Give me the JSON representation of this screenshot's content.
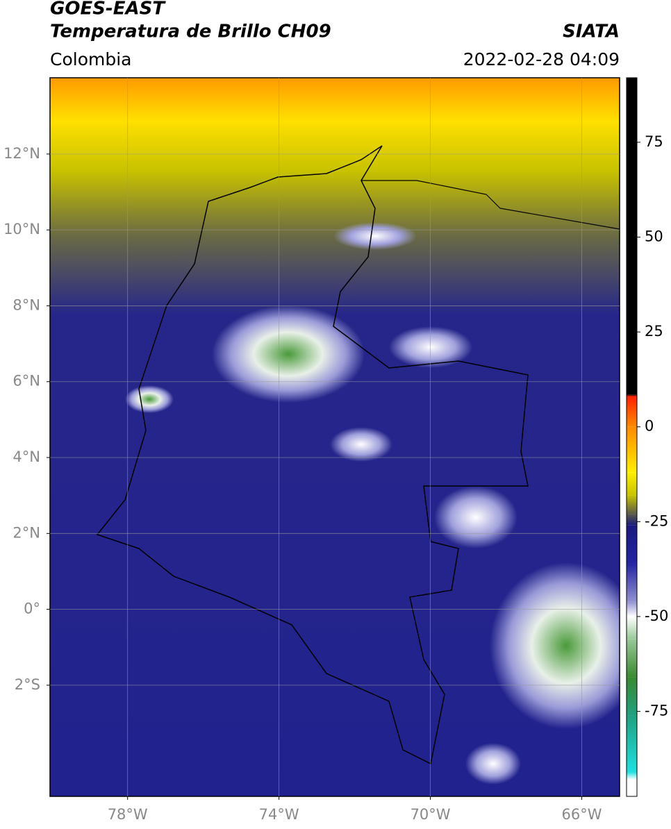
{
  "header": {
    "title": "GOES-EAST",
    "subtitle": "Temperatura de Brillo CH09",
    "source": "SIATA",
    "region": "Colombia",
    "datetime": "2022-02-28 04:09"
  },
  "map": {
    "type": "map",
    "xlim": [
      -80.05,
      -65.0
    ],
    "ylim": [
      -4.93,
      14.01
    ],
    "xticks": [
      {
        "value": -78,
        "label": "78°W"
      },
      {
        "value": -74,
        "label": "74°W"
      },
      {
        "value": -70,
        "label": "70°W"
      },
      {
        "value": -66,
        "label": "66°W"
      }
    ],
    "yticks": [
      {
        "value": 12,
        "label": "12°N"
      },
      {
        "value": 10,
        "label": "10°N"
      },
      {
        "value": 8,
        "label": "8°N"
      },
      {
        "value": 6,
        "label": "6°N"
      },
      {
        "value": 4,
        "label": "4°N"
      },
      {
        "value": 2,
        "label": "2°N"
      },
      {
        "value": 0,
        "label": "0°"
      },
      {
        "value": -2,
        "label": "2°S"
      }
    ],
    "grid": true
  },
  "colorbar": {
    "lim": [
      -97.4,
      92
    ],
    "ticks": [
      75,
      50,
      25,
      0,
      -25,
      -50,
      -75
    ],
    "stops": [
      {
        "value": 92,
        "color": "#000000"
      },
      {
        "value": 8.5,
        "color": "#000000"
      },
      {
        "value": 8,
        "color": "#ff2000"
      },
      {
        "value": 0,
        "color": "#ff8a00"
      },
      {
        "value": -12,
        "color": "#ffee00"
      },
      {
        "value": -18,
        "color": "#c8c400"
      },
      {
        "value": -23,
        "color": "#5a5a48"
      },
      {
        "value": -26,
        "color": "#1a1a80"
      },
      {
        "value": -36,
        "color": "#2424a4"
      },
      {
        "value": -46,
        "color": "#9090d0"
      },
      {
        "value": -50,
        "color": "#ffffff"
      },
      {
        "value": -56,
        "color": "#98c898"
      },
      {
        "value": -66,
        "color": "#3a8a30"
      },
      {
        "value": -76,
        "color": "#20a080"
      },
      {
        "value": -91,
        "color": "#20e0e0"
      },
      {
        "value": -93,
        "color": "#ffffff"
      },
      {
        "value": -97.4,
        "color": "#ffffff"
      }
    ]
  }
}
